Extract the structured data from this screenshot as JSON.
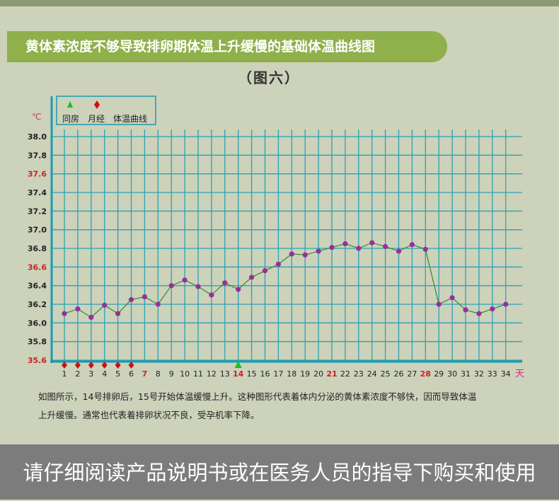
{
  "header": {
    "title": "黄体素浓度不够导致排卵期体温上升缓慢的基础体温曲线图",
    "subtitle": "（图六）"
  },
  "legend": {
    "tongfang_label": "同房",
    "yuejing_label": "月经",
    "curve_label": "体温曲线"
  },
  "colors": {
    "grid": "#2aa3b4",
    "axis": "#1a9bb0",
    "line": "#2f8a2f",
    "point": "#9a2e9a",
    "highlight_text": "#cc2222",
    "tongfang_marker": "#22bb22",
    "yuejing_marker": "#cc1111"
  },
  "chart_data": {
    "type": "line",
    "ylabel": "℃",
    "xlabel": "天",
    "ylim": [
      35.6,
      38.0
    ],
    "yticks": [
      "35.6",
      "35.8",
      "36.0",
      "36.2",
      "36.4",
      "36.6",
      "36.8",
      "37.0",
      "37.2",
      "37.4",
      "37.6",
      "37.8",
      "38.0"
    ],
    "ytick_highlight": [
      "35.6",
      "36.6",
      "37.6"
    ],
    "categories": [
      "1",
      "2",
      "3",
      "4",
      "5",
      "6",
      "7",
      "8",
      "9",
      "10",
      "11",
      "12",
      "13",
      "14",
      "15",
      "16",
      "17",
      "18",
      "19",
      "20",
      "21",
      "22",
      "23",
      "24",
      "25",
      "26",
      "27",
      "28",
      "29",
      "30",
      "31",
      "32",
      "33",
      "34"
    ],
    "xtick_highlight": [
      "7",
      "14",
      "21",
      "28"
    ],
    "series": [
      {
        "values": [
          36.1,
          36.15,
          36.06,
          36.19,
          36.1,
          36.25,
          36.28,
          36.2,
          36.4,
          36.46,
          36.39,
          36.3,
          36.43,
          36.36,
          36.49,
          36.56,
          36.63,
          36.74,
          36.73,
          36.77,
          36.81,
          36.85,
          36.8,
          36.86,
          36.82,
          36.77,
          36.84,
          36.79,
          36.2,
          36.27,
          36.14,
          36.1,
          36.15,
          36.2
        ]
      }
    ],
    "markers": {
      "yuejing_days": [
        1,
        2,
        3,
        4,
        5,
        6
      ],
      "tongfang_days": [
        14
      ]
    },
    "grid": true,
    "legend_position": "top-left"
  },
  "caption": {
    "line1": "如图所示，14号排卵后，15号开始体温缓慢上升。这种图形代表着体内分泌的黄体素浓度不够快，因而导致体温",
    "line2": "上升缓慢。通常也代表着排卵状况不良，受孕机率下降。"
  },
  "footer": {
    "text": "请仔细阅读产品说明书或在医务人员的指导下购买和使用"
  }
}
